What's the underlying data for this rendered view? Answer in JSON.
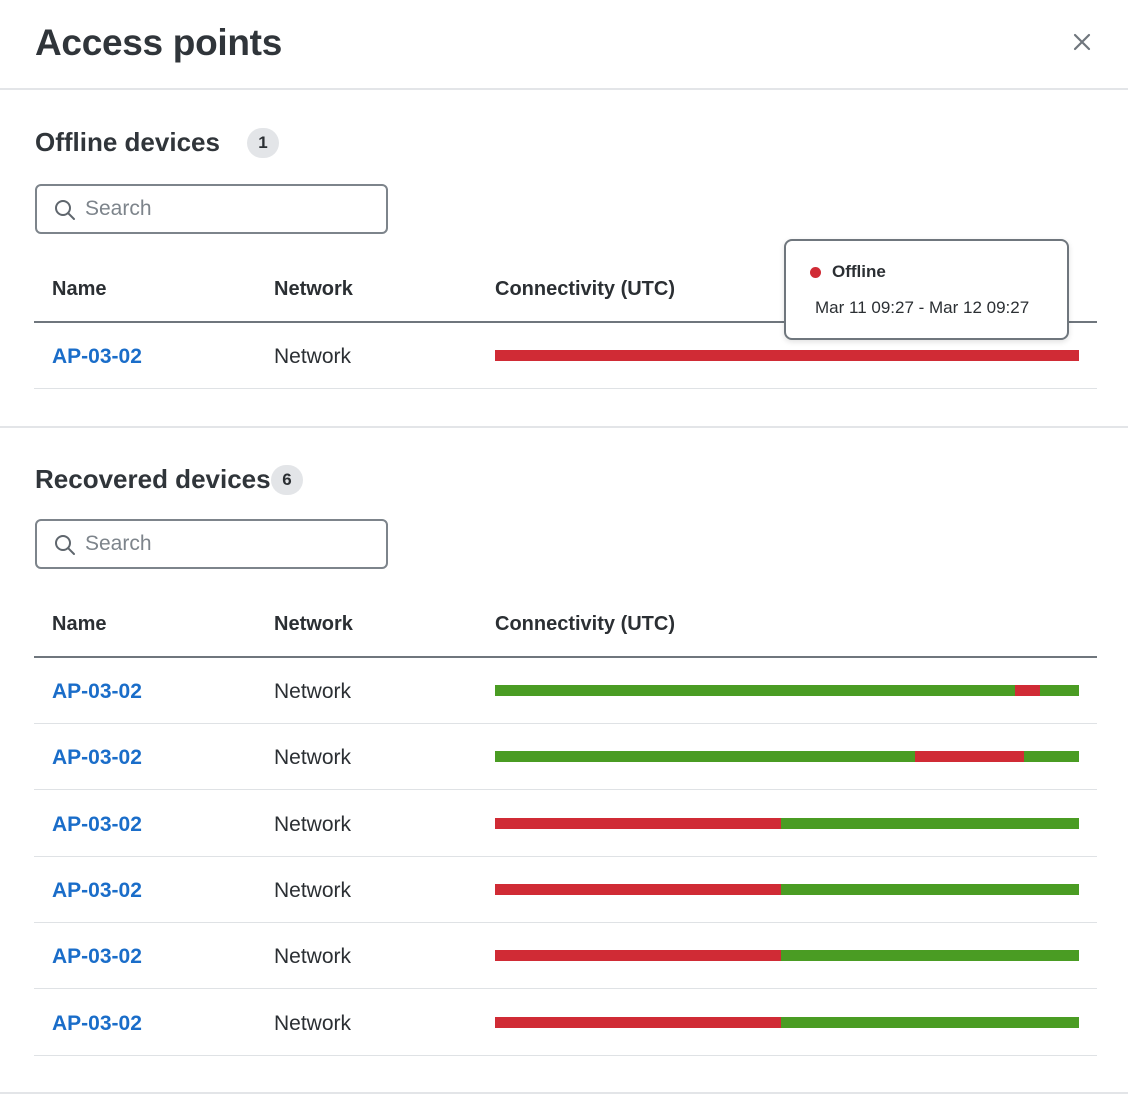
{
  "header": {
    "title": "Access points",
    "close_icon": "close-icon"
  },
  "colors": {
    "online": "#4a9c23",
    "offline": "#d02b35",
    "link": "#1a6dc9"
  },
  "offline_section": {
    "title": "Offline devices",
    "count": "1",
    "search": {
      "placeholder": "Search",
      "value": ""
    },
    "columns": [
      "Name",
      "Network",
      "Connectivity (UTC)"
    ],
    "rows": [
      {
        "name": "AP-03-02",
        "network": "Network",
        "connectivity": [
          {
            "status": "offline",
            "fraction": 1.0
          }
        ]
      }
    ],
    "tooltip": {
      "status": "Offline",
      "range": "Mar 11 09:27 - Mar 12 09:27"
    }
  },
  "recovered_section": {
    "title": "Recovered devices",
    "count": "6",
    "search": {
      "placeholder": "Search",
      "value": ""
    },
    "columns": [
      "Name",
      "Network",
      "Connectivity (UTC)"
    ],
    "rows": [
      {
        "name": "AP-03-02",
        "network": "Network",
        "connectivity": [
          {
            "status": "online",
            "fraction": 0.89
          },
          {
            "status": "offline",
            "fraction": 0.043
          },
          {
            "status": "online",
            "fraction": 0.067
          }
        ]
      },
      {
        "name": "AP-03-02",
        "network": "Network",
        "connectivity": [
          {
            "status": "online",
            "fraction": 0.72
          },
          {
            "status": "offline",
            "fraction": 0.185
          },
          {
            "status": "online",
            "fraction": 0.095
          }
        ]
      },
      {
        "name": "AP-03-02",
        "network": "Network",
        "connectivity": [
          {
            "status": "offline",
            "fraction": 0.49
          },
          {
            "status": "online",
            "fraction": 0.51
          }
        ]
      },
      {
        "name": "AP-03-02",
        "network": "Network",
        "connectivity": [
          {
            "status": "offline",
            "fraction": 0.49
          },
          {
            "status": "online",
            "fraction": 0.51
          }
        ]
      },
      {
        "name": "AP-03-02",
        "network": "Network",
        "connectivity": [
          {
            "status": "offline",
            "fraction": 0.49
          },
          {
            "status": "online",
            "fraction": 0.51
          }
        ]
      },
      {
        "name": "AP-03-02",
        "network": "Network",
        "connectivity": [
          {
            "status": "offline",
            "fraction": 0.49
          },
          {
            "status": "online",
            "fraction": 0.51
          }
        ]
      }
    ]
  }
}
